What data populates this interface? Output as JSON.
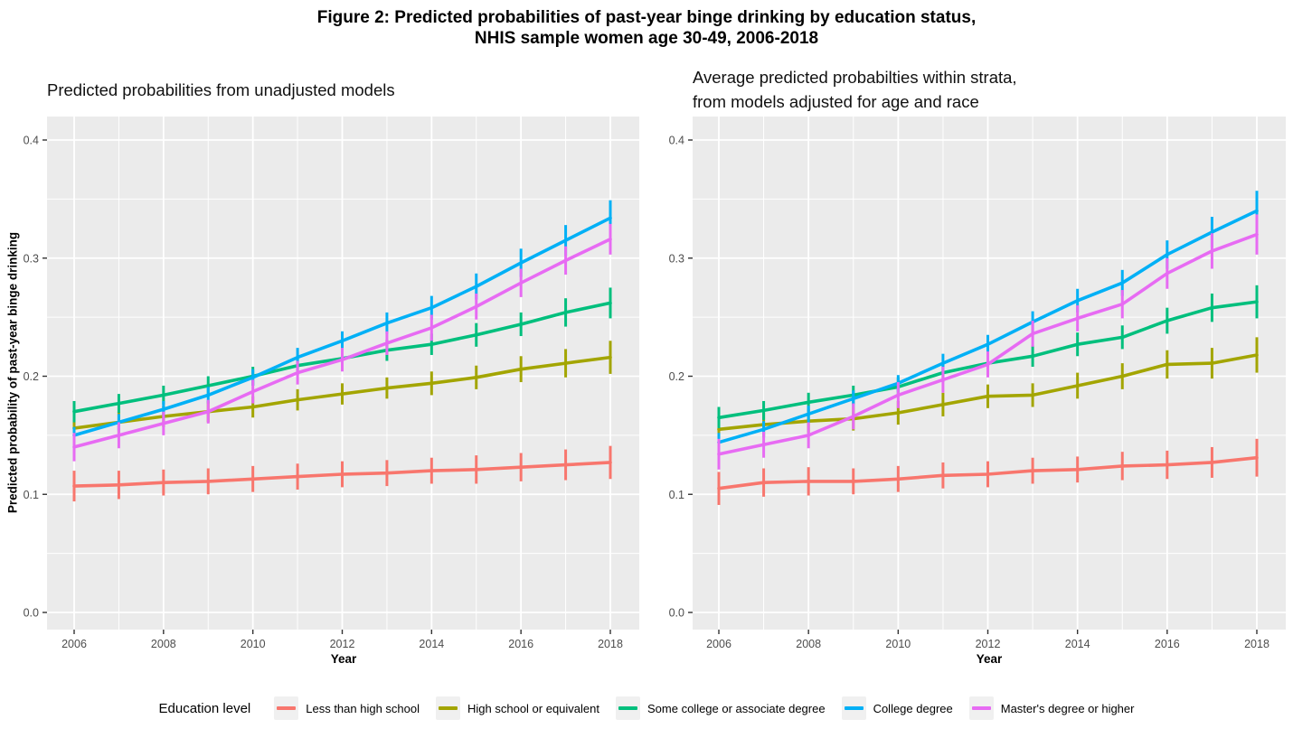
{
  "title": {
    "line1": "Figure 2: Predicted probabilities of past-year binge drinking by education status,",
    "line2": "NHIS sample women age 30-49, 2006-2018"
  },
  "colors": {
    "panel_background": "#EBEBEB",
    "gridline": "#FFFFFF",
    "tick_label": "#4D4D4D",
    "tick_mark": "#333333",
    "less_than_high_school": "#F8766D",
    "high_school_or_equivalent": "#A3A500",
    "some_college_or_associate_degree": "#00BF7D",
    "college_degree": "#00B0F6",
    "masters_degree_or_higher": "#E76BF3"
  },
  "legend": {
    "title": "Education level",
    "items": [
      {
        "label": "Less than high school",
        "color": "#F8766D"
      },
      {
        "label": "High school or equivalent",
        "color": "#A3A500"
      },
      {
        "label": "Some college or associate degree",
        "color": "#00BF7D"
      },
      {
        "label": "College degree",
        "color": "#00B0F6"
      },
      {
        "label": "Master's degree or higher",
        "color": "#E76BF3"
      }
    ]
  },
  "chart_data": [
    {
      "type": "line",
      "title": "Predicted probabilities from unadjusted models",
      "xlabel": "Year",
      "ylabel": "Predicted probability of past-year binge drinking",
      "x": [
        2006,
        2007,
        2008,
        2009,
        2010,
        2011,
        2012,
        2013,
        2014,
        2015,
        2016,
        2017,
        2018
      ],
      "x_ticks": [
        2006,
        2008,
        2010,
        2012,
        2014,
        2016,
        2018
      ],
      "y_ticks": [
        0.0,
        0.1,
        0.2,
        0.3,
        0.4
      ],
      "y_minor_ticks": [
        0.05,
        0.15,
        0.25,
        0.35
      ],
      "ylim": [
        -0.015,
        0.421
      ],
      "grid": true,
      "legend_position": "bottom",
      "series": [
        {
          "name": "Less than high school",
          "color": "#F8766D",
          "values": [
            0.107,
            0.108,
            0.11,
            0.111,
            0.113,
            0.115,
            0.117,
            0.118,
            0.12,
            0.121,
            0.123,
            0.125,
            0.127
          ],
          "ci": [
            0.013,
            0.012,
            0.011,
            0.011,
            0.011,
            0.011,
            0.011,
            0.011,
            0.011,
            0.012,
            0.012,
            0.013,
            0.014
          ]
        },
        {
          "name": "High school or equivalent",
          "color": "#A3A500",
          "values": [
            0.156,
            0.161,
            0.166,
            0.17,
            0.174,
            0.18,
            0.185,
            0.19,
            0.194,
            0.199,
            0.206,
            0.211,
            0.216
          ],
          "ci": [
            0.01,
            0.009,
            0.009,
            0.009,
            0.009,
            0.009,
            0.009,
            0.009,
            0.01,
            0.01,
            0.011,
            0.012,
            0.014
          ]
        },
        {
          "name": "Some college or associate degree",
          "color": "#00BF7D",
          "values": [
            0.17,
            0.177,
            0.184,
            0.192,
            0.2,
            0.209,
            0.215,
            0.222,
            0.227,
            0.235,
            0.244,
            0.254,
            0.262
          ],
          "ci": [
            0.009,
            0.008,
            0.008,
            0.008,
            0.008,
            0.008,
            0.008,
            0.009,
            0.009,
            0.01,
            0.01,
            0.012,
            0.013
          ]
        },
        {
          "name": "College degree",
          "color": "#00B0F6",
          "values": [
            0.15,
            0.161,
            0.172,
            0.184,
            0.199,
            0.216,
            0.23,
            0.245,
            0.258,
            0.276,
            0.296,
            0.315,
            0.334
          ],
          "ci": [
            0.007,
            0.007,
            0.007,
            0.007,
            0.007,
            0.008,
            0.008,
            0.009,
            0.01,
            0.011,
            0.012,
            0.013,
            0.015
          ]
        },
        {
          "name": "Master's degree or higher",
          "color": "#E76BF3",
          "values": [
            0.14,
            0.15,
            0.16,
            0.17,
            0.187,
            0.203,
            0.214,
            0.228,
            0.241,
            0.259,
            0.279,
            0.298,
            0.316
          ],
          "ci": [
            0.012,
            0.011,
            0.01,
            0.01,
            0.01,
            0.01,
            0.01,
            0.01,
            0.011,
            0.011,
            0.012,
            0.012,
            0.013
          ]
        }
      ]
    },
    {
      "type": "line",
      "title": "Average predicted probabilties within strata,\nfrom models adjusted for age and race",
      "xlabel": "Year",
      "ylabel": "Predicted probability of past-year binge drinking",
      "x": [
        2006,
        2007,
        2008,
        2009,
        2010,
        2011,
        2012,
        2013,
        2014,
        2015,
        2016,
        2017,
        2018
      ],
      "x_ticks": [
        2006,
        2008,
        2010,
        2012,
        2014,
        2016,
        2018
      ],
      "y_ticks": [
        0.0,
        0.1,
        0.2,
        0.3,
        0.4
      ],
      "y_minor_ticks": [
        0.05,
        0.15,
        0.25,
        0.35
      ],
      "ylim": [
        -0.015,
        0.421
      ],
      "grid": true,
      "legend_position": "bottom",
      "series": [
        {
          "name": "Less than high school",
          "color": "#F8766D",
          "values": [
            0.105,
            0.11,
            0.111,
            0.111,
            0.113,
            0.116,
            0.117,
            0.12,
            0.121,
            0.124,
            0.125,
            0.127,
            0.131
          ],
          "ci": [
            0.014,
            0.012,
            0.012,
            0.011,
            0.011,
            0.011,
            0.011,
            0.011,
            0.011,
            0.012,
            0.012,
            0.013,
            0.016
          ]
        },
        {
          "name": "High school or equivalent",
          "color": "#A3A500",
          "values": [
            0.155,
            0.159,
            0.162,
            0.164,
            0.169,
            0.176,
            0.183,
            0.184,
            0.192,
            0.2,
            0.21,
            0.211,
            0.218
          ],
          "ci": [
            0.011,
            0.01,
            0.01,
            0.01,
            0.01,
            0.01,
            0.01,
            0.01,
            0.011,
            0.011,
            0.012,
            0.013,
            0.015
          ]
        },
        {
          "name": "Some college or associate degree",
          "color": "#00BF7D",
          "values": [
            0.165,
            0.171,
            0.178,
            0.184,
            0.191,
            0.203,
            0.211,
            0.217,
            0.227,
            0.233,
            0.247,
            0.258,
            0.263
          ],
          "ci": [
            0.009,
            0.008,
            0.008,
            0.008,
            0.008,
            0.008,
            0.009,
            0.009,
            0.01,
            0.01,
            0.011,
            0.012,
            0.014
          ]
        },
        {
          "name": "College degree",
          "color": "#00B0F6",
          "values": [
            0.144,
            0.155,
            0.168,
            0.181,
            0.194,
            0.211,
            0.227,
            0.246,
            0.264,
            0.279,
            0.303,
            0.322,
            0.34
          ],
          "ci": [
            0.008,
            0.007,
            0.007,
            0.007,
            0.007,
            0.008,
            0.008,
            0.009,
            0.01,
            0.011,
            0.012,
            0.013,
            0.017
          ]
        },
        {
          "name": "Master's degree or higher",
          "color": "#E76BF3",
          "values": [
            0.134,
            0.142,
            0.15,
            0.166,
            0.184,
            0.197,
            0.21,
            0.236,
            0.249,
            0.261,
            0.287,
            0.306,
            0.32
          ],
          "ci": [
            0.013,
            0.011,
            0.011,
            0.011,
            0.011,
            0.011,
            0.011,
            0.011,
            0.011,
            0.012,
            0.013,
            0.015,
            0.017
          ]
        }
      ]
    }
  ]
}
